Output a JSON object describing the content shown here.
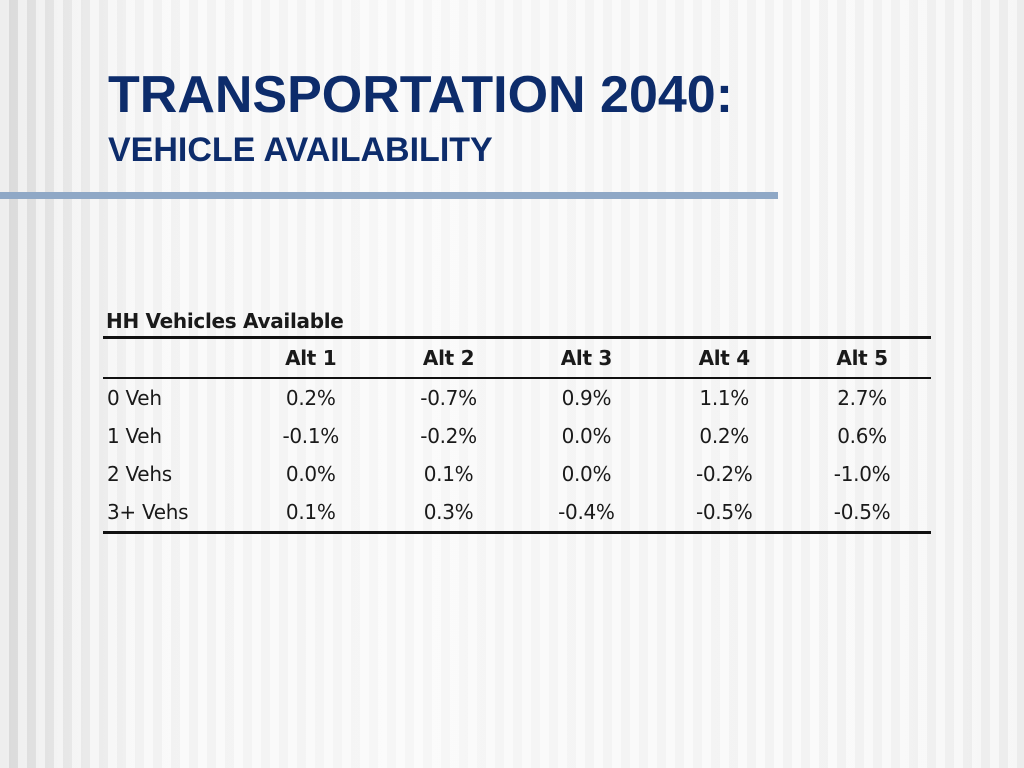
{
  "slide": {
    "title": "TRANSPORTATION 2040:",
    "subtitle": "VEHICLE AVAILABILITY",
    "accent_color": "#0d2c6b",
    "rule_color": "#8fa8c6"
  },
  "table": {
    "caption": "HH Vehicles Available",
    "columns": [
      "",
      "Alt 1",
      "Alt 2",
      "Alt 3",
      "Alt 4",
      "Alt 5"
    ],
    "rows": [
      {
        "label": "0 Veh",
        "values": [
          "0.2%",
          "-0.7%",
          "0.9%",
          "1.1%",
          "2.7%"
        ]
      },
      {
        "label": "1 Veh",
        "values": [
          "-0.1%",
          "-0.2%",
          "0.0%",
          "0.2%",
          "0.6%"
        ]
      },
      {
        "label": "2 Vehs",
        "values": [
          "0.0%",
          "0.1%",
          "0.0%",
          "-0.2%",
          "-1.0%"
        ]
      },
      {
        "label": "3+ Vehs",
        "values": [
          "0.1%",
          "0.3%",
          "-0.4%",
          "-0.5%",
          "-0.5%"
        ]
      }
    ]
  }
}
